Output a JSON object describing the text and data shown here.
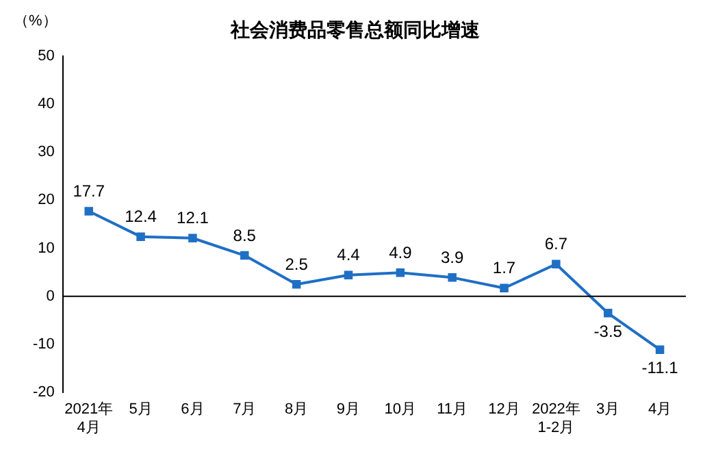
{
  "chart_data": {
    "type": "line",
    "title": "社会消费品零售总额同比增速",
    "ylabel": "（%）",
    "categories": [
      "2021年\n4月",
      "5月",
      "6月",
      "7月",
      "8月",
      "9月",
      "10月",
      "11月",
      "12月",
      "2022年\n1-2月",
      "3月",
      "4月"
    ],
    "series": [
      {
        "color": "#1f6fc5",
        "values": [
          17.7,
          12.4,
          12.1,
          8.5,
          2.5,
          4.4,
          4.9,
          3.9,
          1.7,
          6.7,
          -3.5,
          -11.1
        ]
      }
    ],
    "ref_lines": [
      {
        "axis": "y",
        "value": 0,
        "color": "#000000",
        "line_style": "solid"
      }
    ],
    "ylim": [
      -20,
      50
    ],
    "yticks": [
      -20,
      -10,
      0,
      10,
      20,
      30,
      40,
      50
    ],
    "grid": false,
    "legend": false,
    "marker": "square",
    "line_style": "solid",
    "data_labels": true
  }
}
